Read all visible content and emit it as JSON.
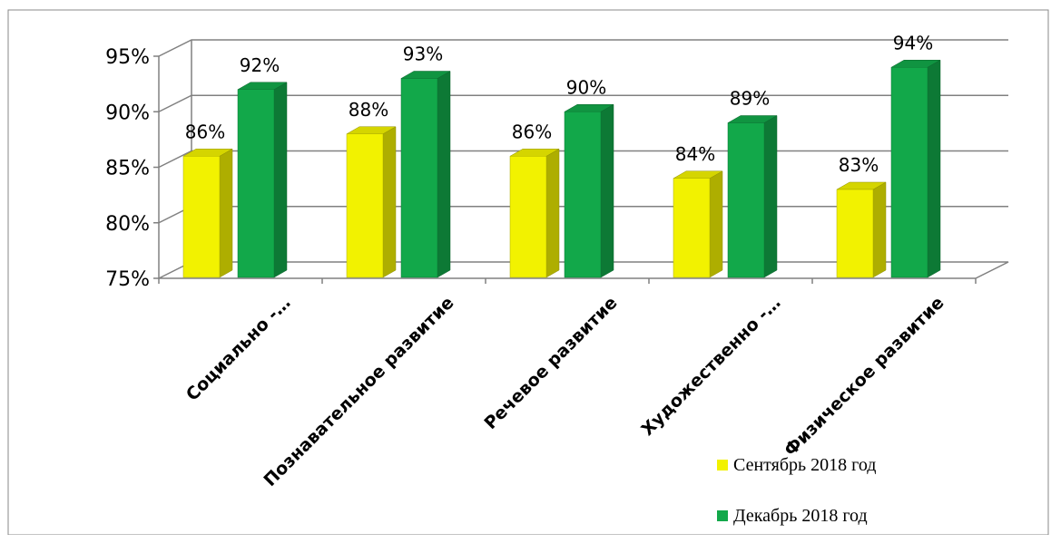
{
  "chart_data": {
    "type": "bar",
    "categories": [
      "Социально -…",
      "Познавательное развитие",
      "Речевое развитие",
      "Художественно -…",
      "Физическое развитие"
    ],
    "series": [
      {
        "name": "Сентябрь 2018 год",
        "color": "#f2f200",
        "values": [
          86,
          88,
          86,
          84,
          83
        ],
        "labels": [
          "86%",
          "88%",
          "86%",
          "84%",
          "83%"
        ]
      },
      {
        "name": "Декабрь 2018 год",
        "color": "#12a84a",
        "values": [
          92,
          93,
          90,
          89,
          94
        ],
        "labels": [
          "92%",
          "93%",
          "90%",
          "89%",
          "94%"
        ]
      }
    ],
    "y_ticks": [
      {
        "value": 75,
        "label": "75%"
      },
      {
        "value": 80,
        "label": "80%"
      },
      {
        "value": 85,
        "label": "85%"
      },
      {
        "value": 90,
        "label": "90%"
      },
      {
        "value": 95,
        "label": "95%"
      }
    ],
    "ylim": [
      75,
      95
    ],
    "grid": true,
    "legend_position": "bottom-right",
    "style": "3d"
  }
}
